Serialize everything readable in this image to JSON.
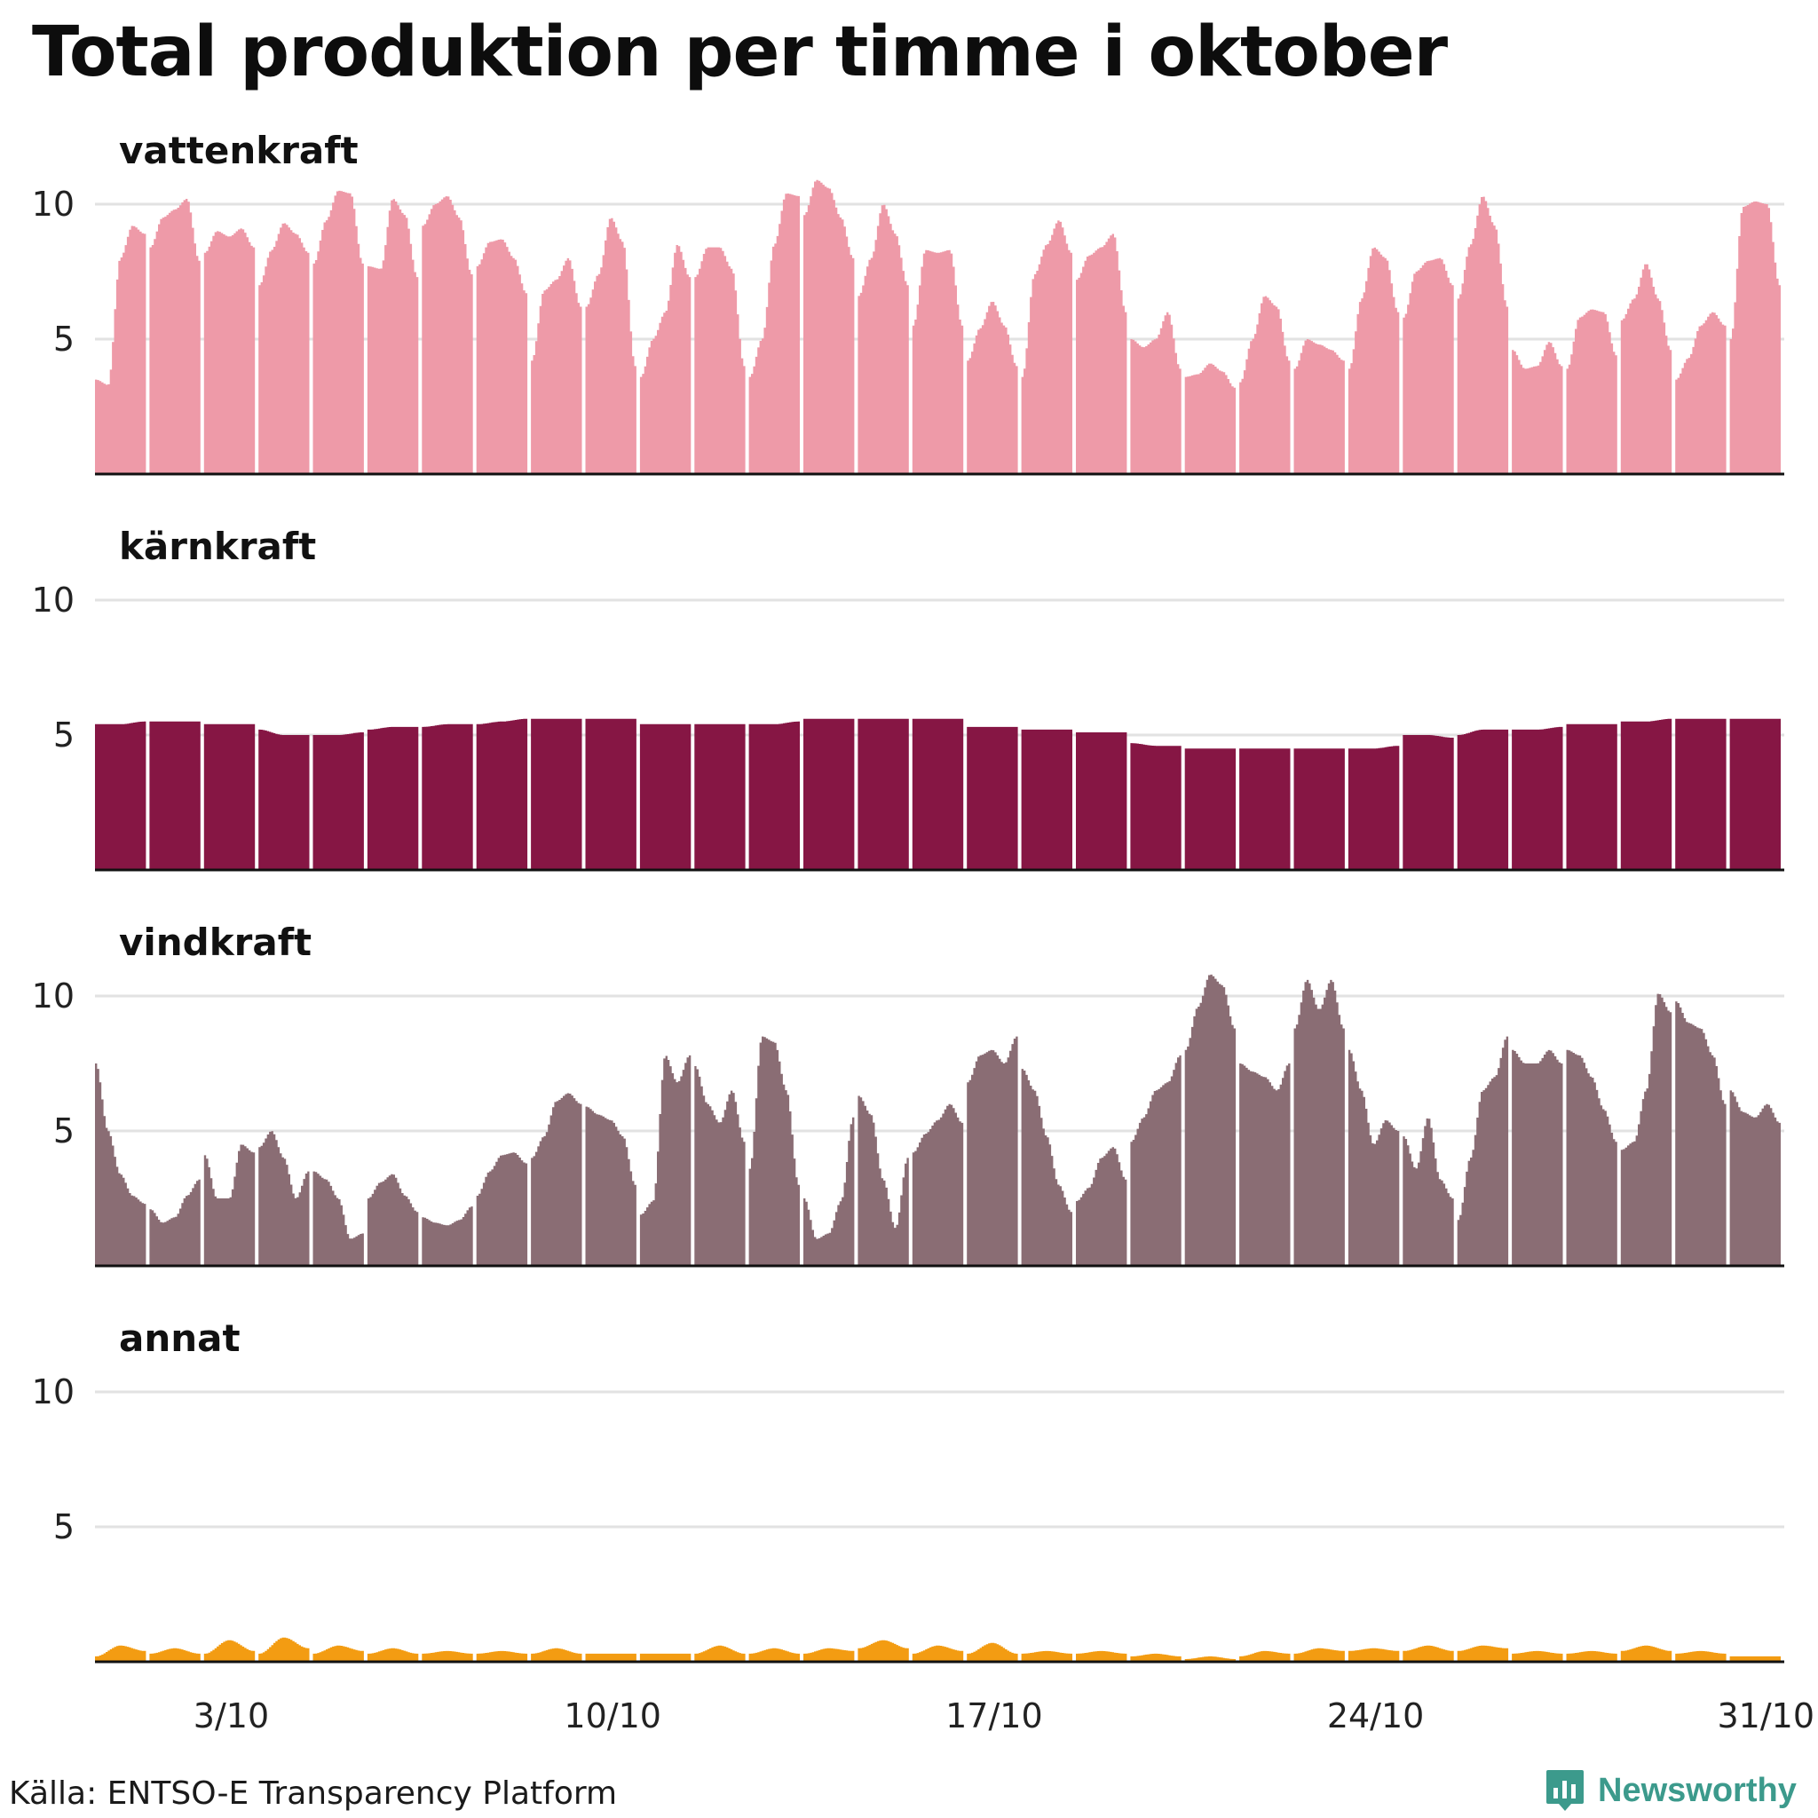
{
  "title": "Total produktion per timme i oktober",
  "source": "Källa: ENTSO-E Transparency Platform",
  "brand": {
    "name": "Newsworthy",
    "color": "#3c9a8c",
    "icon": "bar-chart-speech-bubble-icon"
  },
  "chart_data": {
    "type": "area",
    "layout": "small-multiples",
    "x_unit": "hour",
    "x_range": [
      "1/10",
      "31/10"
    ],
    "x_ticks": [
      "3/10",
      "10/10",
      "17/10",
      "24/10",
      "31/10"
    ],
    "ylim": [
      0,
      10.7
    ],
    "y_ticks": [
      5,
      10
    ],
    "grid": true,
    "panels": [
      {
        "name": "vattenkraft",
        "color": "#ee9aa8",
        "daily_hourly": [
          [
            3.5,
            3.3,
            8.0,
            9.2,
            8.9
          ],
          [
            8.4,
            9.5,
            9.8,
            10.2,
            7.9
          ],
          [
            8.2,
            9.0,
            8.8,
            9.1,
            8.4
          ],
          [
            7.0,
            8.3,
            9.3,
            8.9,
            8.2
          ],
          [
            7.8,
            9.4,
            10.5,
            10.4,
            7.8
          ],
          [
            7.7,
            7.6,
            10.2,
            9.6,
            7.3
          ],
          [
            9.2,
            10.0,
            10.3,
            9.5,
            7.4
          ],
          [
            7.7,
            8.6,
            8.7,
            8.0,
            6.7
          ],
          [
            4.2,
            6.8,
            7.2,
            8.0,
            6.2
          ],
          [
            6.2,
            7.4,
            9.5,
            8.6,
            4.0
          ],
          [
            3.6,
            5.0,
            6.0,
            8.5,
            7.3
          ],
          [
            7.3,
            8.4,
            8.4,
            7.6,
            4.0
          ],
          [
            3.6,
            5.0,
            8.5,
            10.4,
            10.3
          ],
          [
            9.6,
            10.9,
            10.6,
            9.5,
            8.0
          ],
          [
            6.6,
            8.0,
            10.0,
            8.9,
            7.0
          ],
          [
            5.5,
            8.3,
            8.2,
            8.3,
            5.5
          ],
          [
            4.2,
            5.4,
            6.4,
            5.5,
            4.0
          ],
          [
            3.6,
            7.4,
            8.5,
            9.4,
            8.2
          ],
          [
            7.2,
            8.1,
            8.4,
            8.9,
            6.0
          ],
          [
            5.0,
            4.7,
            5.0,
            6.0,
            3.9
          ],
          [
            3.6,
            3.7,
            4.1,
            3.8,
            3.2
          ],
          [
            3.4,
            5.0,
            6.6,
            6.2,
            4.2
          ],
          [
            3.9,
            5.0,
            4.8,
            4.6,
            4.2
          ],
          [
            3.9,
            6.5,
            8.4,
            8.0,
            6.0
          ],
          [
            5.8,
            7.5,
            7.9,
            8.0,
            7.0
          ],
          [
            6.5,
            8.5,
            10.3,
            9.2,
            6.2
          ],
          [
            4.6,
            3.9,
            4.0,
            4.9,
            4.0
          ],
          [
            3.9,
            5.8,
            6.1,
            6.0,
            4.4
          ],
          [
            5.7,
            6.5,
            7.8,
            6.5,
            4.6
          ],
          [
            3.5,
            4.3,
            5.5,
            6.0,
            5.5
          ],
          [
            5.0,
            9.9,
            10.1,
            10.0,
            7.0
          ]
        ]
      },
      {
        "name": "kärnkraft",
        "color": "#861644",
        "daily_hourly": [
          [
            5.4,
            5.4,
            5.5
          ],
          [
            5.5,
            5.5,
            5.5
          ],
          [
            5.4,
            5.4,
            5.4
          ],
          [
            5.2,
            5.0,
            5.0
          ],
          [
            5.0,
            5.0,
            5.1
          ],
          [
            5.2,
            5.3,
            5.3
          ],
          [
            5.3,
            5.4,
            5.4
          ],
          [
            5.4,
            5.5,
            5.6
          ],
          [
            5.6,
            5.6,
            5.6
          ],
          [
            5.6,
            5.6,
            5.6
          ],
          [
            5.4,
            5.4,
            5.4
          ],
          [
            5.4,
            5.4,
            5.4
          ],
          [
            5.4,
            5.4,
            5.5
          ],
          [
            5.6,
            5.6,
            5.6
          ],
          [
            5.6,
            5.6,
            5.6
          ],
          [
            5.6,
            5.6,
            5.6
          ],
          [
            5.3,
            5.3,
            5.3
          ],
          [
            5.2,
            5.2,
            5.2
          ],
          [
            5.1,
            5.1,
            5.1
          ],
          [
            4.7,
            4.6,
            4.6
          ],
          [
            4.5,
            4.5,
            4.5
          ],
          [
            4.5,
            4.5,
            4.5
          ],
          [
            4.5,
            4.5,
            4.5
          ],
          [
            4.5,
            4.5,
            4.6
          ],
          [
            5.0,
            5.0,
            4.9
          ],
          [
            5.0,
            5.2,
            5.2
          ],
          [
            5.2,
            5.2,
            5.3
          ],
          [
            5.4,
            5.4,
            5.4
          ],
          [
            5.5,
            5.5,
            5.6
          ],
          [
            5.6,
            5.6,
            5.6
          ],
          [
            5.6,
            5.6,
            5.6
          ]
        ]
      },
      {
        "name": "vindkraft",
        "color": "#8a6d74",
        "daily_hourly": [
          [
            7.5,
            5.0,
            3.4,
            2.6,
            2.3
          ],
          [
            2.1,
            1.6,
            1.8,
            2.6,
            3.2
          ],
          [
            4.1,
            2.5,
            2.5,
            4.5,
            4.2
          ],
          [
            4.4,
            5.0,
            4.0,
            2.5,
            3.5
          ],
          [
            3.5,
            3.2,
            2.5,
            1.0,
            1.2
          ],
          [
            2.5,
            3.1,
            3.4,
            2.6,
            2.0
          ],
          [
            1.8,
            1.6,
            1.5,
            1.7,
            2.2
          ],
          [
            2.6,
            3.5,
            4.1,
            4.2,
            3.8
          ],
          [
            4.0,
            4.8,
            6.1,
            6.4,
            6.0
          ],
          [
            5.9,
            5.6,
            5.4,
            4.8,
            3.0
          ],
          [
            1.9,
            2.4,
            7.8,
            6.8,
            7.8
          ],
          [
            7.4,
            6.0,
            5.3,
            6.5,
            4.6
          ],
          [
            3.6,
            8.5,
            8.3,
            6.5,
            3.0
          ],
          [
            2.5,
            1.0,
            1.2,
            2.4,
            5.5
          ],
          [
            6.3,
            5.6,
            3.2,
            1.4,
            4.0
          ],
          [
            4.2,
            4.9,
            5.4,
            6.0,
            5.3
          ],
          [
            6.8,
            7.8,
            8.0,
            7.5,
            8.5
          ],
          [
            7.3,
            6.5,
            4.8,
            3.0,
            2.0
          ],
          [
            2.4,
            2.9,
            4.0,
            4.4,
            3.2
          ],
          [
            4.6,
            5.5,
            6.5,
            6.8,
            7.8
          ],
          [
            8.0,
            9.6,
            10.8,
            10.4,
            8.8
          ],
          [
            7.5,
            7.2,
            7.0,
            6.5,
            7.5
          ],
          [
            8.8,
            10.6,
            9.5,
            10.6,
            8.8
          ],
          [
            8.0,
            6.5,
            4.5,
            5.4,
            5.0
          ],
          [
            4.8,
            3.6,
            5.5,
            3.2,
            2.5
          ],
          [
            1.7,
            4.0,
            6.5,
            7.0,
            8.5
          ],
          [
            8.0,
            7.5,
            7.5,
            8.0,
            7.5
          ],
          [
            8.0,
            7.8,
            7.0,
            5.8,
            4.6
          ],
          [
            4.3,
            4.6,
            6.5,
            10.1,
            9.4
          ],
          [
            9.8,
            9.0,
            8.8,
            7.8,
            6.0
          ],
          [
            6.5,
            5.7,
            5.5,
            6.0,
            5.3
          ]
        ]
      },
      {
        "name": "annat",
        "color": "#f39c12",
        "daily_hourly": [
          [
            0.2,
            0.6,
            0.4
          ],
          [
            0.3,
            0.5,
            0.3
          ],
          [
            0.3,
            0.8,
            0.4
          ],
          [
            0.3,
            0.9,
            0.5
          ],
          [
            0.3,
            0.6,
            0.4
          ],
          [
            0.3,
            0.5,
            0.3
          ],
          [
            0.3,
            0.4,
            0.3
          ],
          [
            0.3,
            0.4,
            0.3
          ],
          [
            0.3,
            0.5,
            0.3
          ],
          [
            0.3,
            0.3,
            0.3
          ],
          [
            0.3,
            0.3,
            0.3
          ],
          [
            0.3,
            0.6,
            0.3
          ],
          [
            0.3,
            0.5,
            0.3
          ],
          [
            0.3,
            0.5,
            0.4
          ],
          [
            0.5,
            0.8,
            0.5
          ],
          [
            0.3,
            0.6,
            0.4
          ],
          [
            0.3,
            0.7,
            0.3
          ],
          [
            0.3,
            0.4,
            0.3
          ],
          [
            0.3,
            0.4,
            0.3
          ],
          [
            0.2,
            0.3,
            0.2
          ],
          [
            0.1,
            0.2,
            0.1
          ],
          [
            0.2,
            0.4,
            0.3
          ],
          [
            0.3,
            0.5,
            0.4
          ],
          [
            0.4,
            0.5,
            0.4
          ],
          [
            0.4,
            0.6,
            0.4
          ],
          [
            0.4,
            0.6,
            0.5
          ],
          [
            0.3,
            0.4,
            0.3
          ],
          [
            0.3,
            0.4,
            0.3
          ],
          [
            0.4,
            0.6,
            0.4
          ],
          [
            0.3,
            0.4,
            0.3
          ],
          [
            0.2,
            0.2,
            0.2
          ]
        ]
      }
    ]
  }
}
